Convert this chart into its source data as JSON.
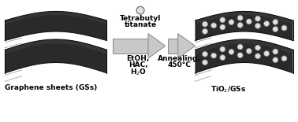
{
  "bg_color": "#ffffff",
  "sheet_dark": "#2a2a2a",
  "sheet_mid": "#404040",
  "sheet_light": "#666666",
  "sheet_edge": "#111111",
  "np_face": "#e0e0e0",
  "np_edge": "#888888",
  "arrow_fill": "#c8c8c8",
  "arrow_edge": "#888888",
  "text_color": "#000000",
  "label_graphene": "Graphene sheets (GSs)",
  "label_tio2": "TiO$_2$/GSs",
  "reagent1": "Tetrabutyl",
  "reagent2": "titanate",
  "solvent1": "EtOH,",
  "solvent2": "HAC,",
  "solvent3": "H$_2$O",
  "anneal1": "Annealing,",
  "anneal2": "450°C",
  "fig_w": 3.78,
  "fig_h": 1.55,
  "dpi": 100
}
